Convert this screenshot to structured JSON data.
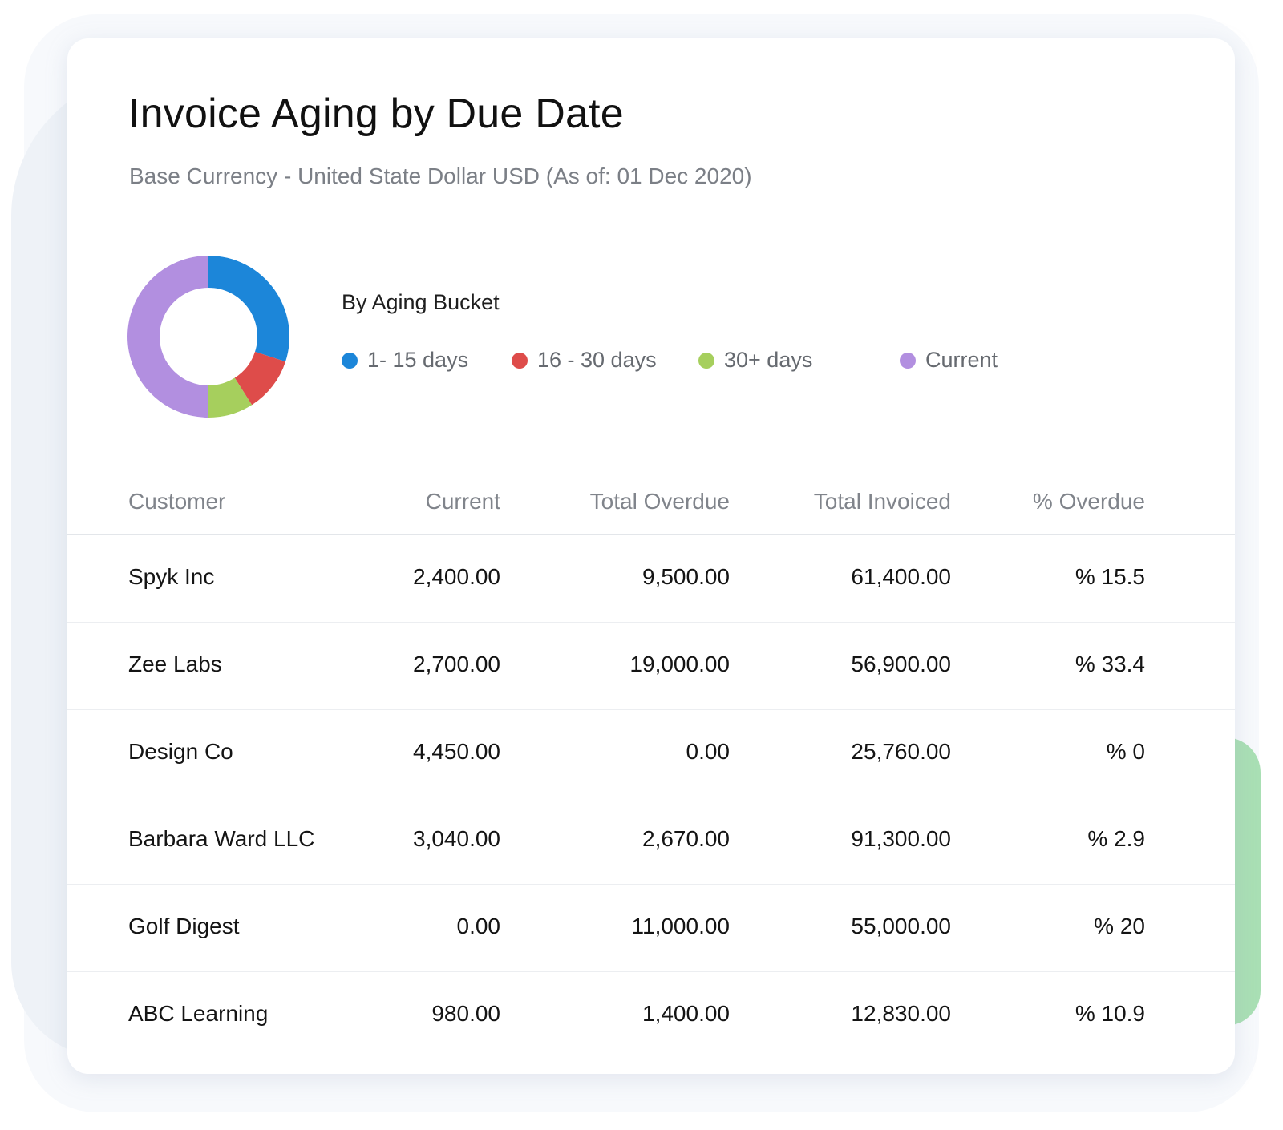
{
  "header": {
    "title": "Invoice Aging by Due Date",
    "subtitle": "Base Currency - United State Dollar USD (As of: 01 Dec 2020)"
  },
  "legend": {
    "title": "By Aging Bucket",
    "items": [
      {
        "label": "1- 15 days",
        "color": "#1c86d9"
      },
      {
        "label": "16 - 30 days",
        "color": "#de4c4a"
      },
      {
        "label": "30+ days",
        "color": "#a6cf5d"
      },
      {
        "label": "Current",
        "color": "#b28fe0"
      }
    ]
  },
  "chart_data": {
    "type": "pie",
    "title": "By Aging Bucket",
    "donut": true,
    "categories": [
      "1- 15 days",
      "16 - 30 days",
      "30+ days",
      "Current"
    ],
    "values": [
      30,
      11,
      9,
      50
    ],
    "unit": "percent (estimated from slice size)",
    "colors": [
      "#1c86d9",
      "#de4c4a",
      "#a6cf5d",
      "#b28fe0"
    ]
  },
  "table": {
    "columns": [
      "Customer",
      "Current",
      "Total Overdue",
      "Total Invoiced",
      "% Overdue"
    ],
    "rows": [
      [
        "Spyk Inc",
        "2,400.00",
        "9,500.00",
        "61,400.00",
        "% 15.5"
      ],
      [
        "Zee Labs",
        "2,700.00",
        "19,000.00",
        "56,900.00",
        "% 33.4"
      ],
      [
        "Design Co",
        "4,450.00",
        "0.00",
        "25,760.00",
        "% 0"
      ],
      [
        "Barbara Ward LLC",
        "3,040.00",
        "2,670.00",
        "91,300.00",
        "% 2.9"
      ],
      [
        "Golf Digest",
        "0.00",
        "11,000.00",
        "55,000.00",
        "% 20"
      ],
      [
        "ABC Learning",
        "980.00",
        "1,400.00",
        "12,830.00",
        "% 10.9"
      ]
    ]
  }
}
